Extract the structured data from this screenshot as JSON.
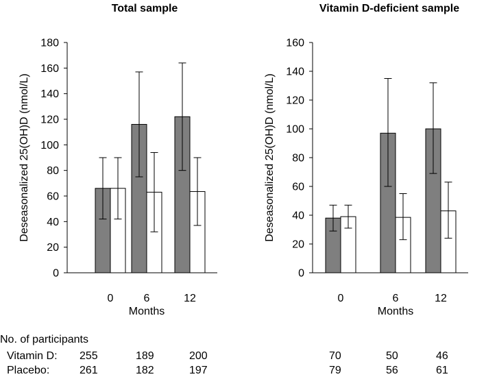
{
  "chart_data": [
    {
      "type": "bar",
      "title": "Total sample",
      "xlabel": "Months",
      "ylabel": "Deseasonalized 25(OH)D (nmol/L)",
      "ylim": [
        0,
        180
      ],
      "yticks": [
        0,
        20,
        40,
        60,
        80,
        100,
        120,
        140,
        160,
        180
      ],
      "categories": [
        "0",
        "6",
        "12"
      ],
      "series": [
        {
          "name": "Vitamin D",
          "color": "#7f7f7f",
          "values": [
            66,
            116,
            122
          ],
          "err_low": [
            42,
            75,
            80
          ],
          "err_high": [
            90,
            157,
            164
          ]
        },
        {
          "name": "Placebo",
          "color": "#ffffff",
          "values": [
            66,
            63,
            63.5
          ],
          "err_low": [
            42,
            32,
            37
          ],
          "err_high": [
            90,
            94,
            90
          ]
        }
      ]
    },
    {
      "type": "bar",
      "title": "Vitamin D-deficient sample",
      "xlabel": "Months",
      "ylabel": "Deseasonalized 25(OH)D (nmol/L)",
      "ylim": [
        0,
        160
      ],
      "yticks": [
        0,
        20,
        40,
        60,
        80,
        100,
        120,
        140,
        160
      ],
      "categories": [
        "0",
        "6",
        "12"
      ],
      "series": [
        {
          "name": "Vitamin D",
          "color": "#7f7f7f",
          "values": [
            38,
            97,
            100
          ],
          "err_low": [
            29,
            60,
            69
          ],
          "err_high": [
            47,
            135,
            132
          ]
        },
        {
          "name": "Placebo",
          "color": "#ffffff",
          "values": [
            39,
            38.5,
            43
          ],
          "err_low": [
            31,
            23,
            24
          ],
          "err_high": [
            47,
            55,
            63
          ]
        }
      ]
    }
  ],
  "participants": {
    "header": "No. of participants",
    "rows": [
      {
        "label": "Vitamin D:",
        "left": [
          "255",
          "189",
          "200"
        ],
        "right": [
          "70",
          "50",
          "46"
        ]
      },
      {
        "label": "Placebo:",
        "left": [
          "261",
          "182",
          "197"
        ],
        "right": [
          "79",
          "56",
          "61"
        ]
      }
    ]
  }
}
